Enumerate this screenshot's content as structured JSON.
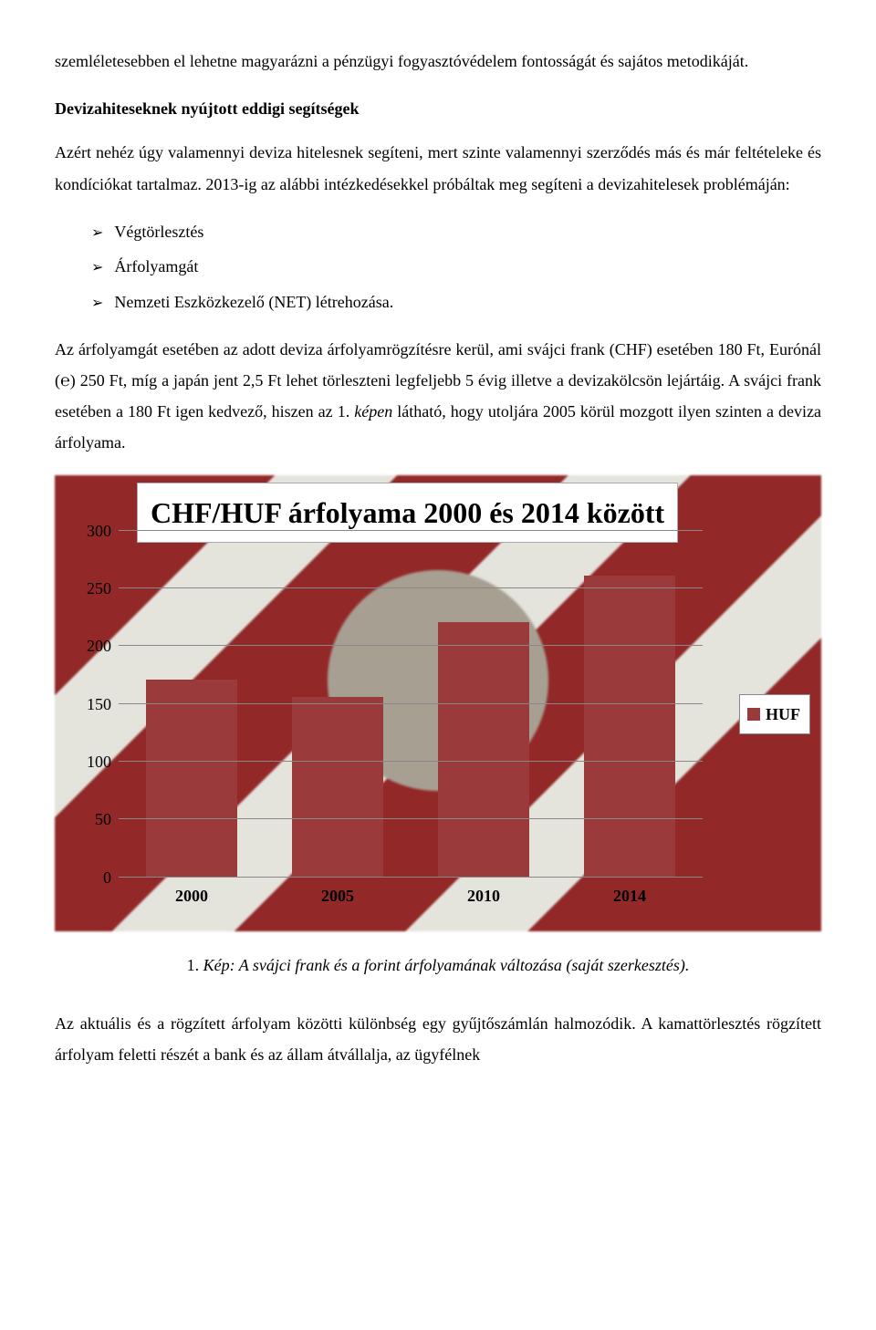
{
  "para1": "szemléletesebben el lehetne magyarázni a pénzügyi fogyasztóvédelem fontosságát és sajátos metodikáját.",
  "heading1": "Devizahiteseknek nyújtott eddigi segítségek",
  "para2": "Azért nehéz úgy valamennyi deviza hitelesnek segíteni, mert szinte valamennyi szerződés más és már feltételeke és kondíciókat tartalmaz. 2013-ig az alábbi intézkedésekkel próbáltak meg segíteni a devizahitelesek problémáján:",
  "bullets": [
    "Végtörlesztés",
    "Árfolyamgát",
    "Nemzeti Eszközkezelő (NET) létrehozása."
  ],
  "para3_a": "Az árfolyamgát esetében az adott deviza árfolyamrögzítésre kerül, ami svájci frank (CHF) esetében 180 Ft, Eurónál (℮) 250 Ft, míg a japán jent 2,5 Ft lehet törleszteni legfeljebb 5 évig illetve a devizakölcsön lejártáig. A svájci frank esetében a 180 Ft igen kedvező, hiszen az 1. ",
  "para3_italic": "képen",
  "para3_b": " látható, hogy utoljára 2005 körül mozgott ilyen szinten a deviza árfolyama.",
  "chart": {
    "type": "bar",
    "title": "CHF/HUF árfolyama 2000 és 2014 között",
    "categories": [
      "2000",
      "2005",
      "2010",
      "2014"
    ],
    "values": [
      170,
      155,
      220,
      260
    ],
    "bar_color": "#9a3a3a",
    "ylim": [
      0,
      300
    ],
    "ytick_step": 50,
    "grid_color": "#888888",
    "legend_label": "HUF",
    "title_fontsize": 32,
    "label_fontsize": 18,
    "background": "photo-red-white-stripes-with-coin"
  },
  "caption_num": "1.",
  "caption_text": "Kép: A svájci frank és a forint árfolyamának változása (saját szerkesztés).",
  "para4": "Az aktuális és a rögzített árfolyam közötti különbség egy gyűjtőszámlán halmozódik. A kamattörlesztés rögzített árfolyam feletti részét a bank és az állam átvállalja, az ügyfélnek"
}
